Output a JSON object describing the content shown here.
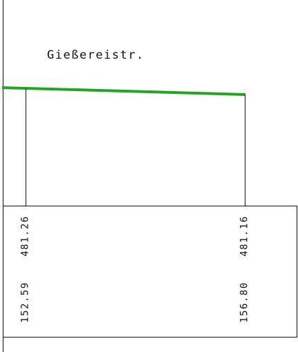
{
  "street": "Gießereistr.",
  "stations": [
    {
      "elevation": "481.26",
      "distance": "152.59"
    },
    {
      "elevation": "481.16",
      "distance": "156.80"
    }
  ]
}
